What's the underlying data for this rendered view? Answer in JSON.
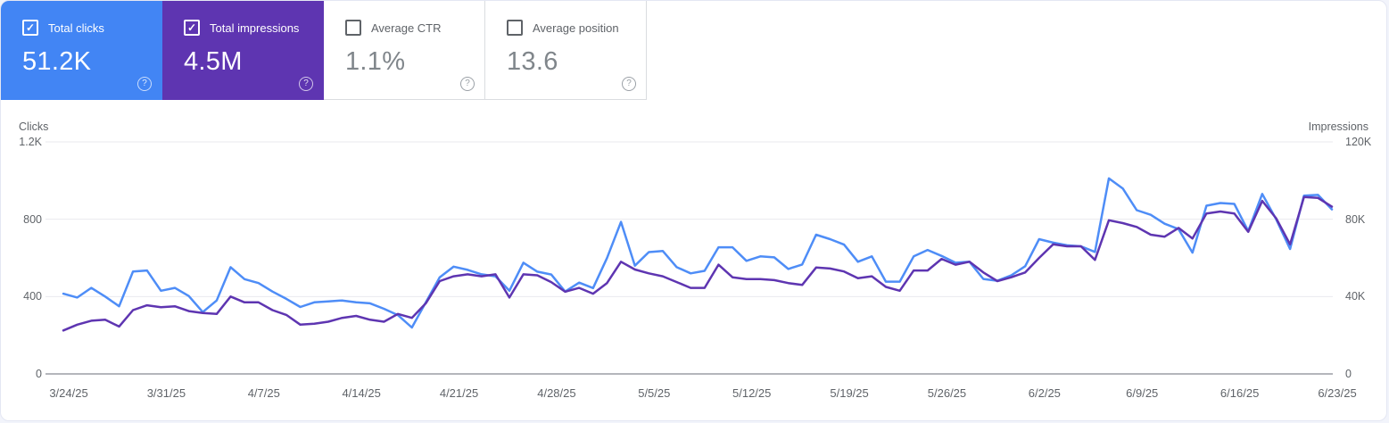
{
  "cards": [
    {
      "label": "Total clicks",
      "value": "51.2K",
      "checked": true,
      "bg": "#4285f4",
      "help_glyph": "?"
    },
    {
      "label": "Total impressions",
      "value": "4.5M",
      "checked": true,
      "bg": "#5e35b1",
      "help_glyph": "?"
    },
    {
      "label": "Average CTR",
      "value": "1.1%",
      "checked": false,
      "bg": "#ffffff",
      "help_glyph": "?"
    },
    {
      "label": "Average position",
      "value": "13.6",
      "checked": false,
      "bg": "#ffffff",
      "help_glyph": "?"
    }
  ],
  "checkmark_glyph": "✓",
  "chart_data": {
    "type": "line",
    "granularity": "daily",
    "x_start": "3/24/25",
    "x_end": "6/23/25",
    "x_tick_labels": [
      "3/24/25",
      "3/31/25",
      "4/7/25",
      "4/14/25",
      "4/21/25",
      "4/28/25",
      "5/5/25",
      "5/12/25",
      "5/19/25",
      "5/26/25",
      "6/2/25",
      "6/9/25",
      "6/16/25",
      "6/23/25"
    ],
    "left_axis": {
      "title": "Clicks",
      "ticks": [
        "1.2K",
        "800",
        "400",
        "0"
      ],
      "tick_values": [
        1200,
        800,
        400,
        0
      ],
      "max": 1200
    },
    "right_axis": {
      "title": "Impressions",
      "ticks": [
        "120K",
        "80K",
        "40K",
        "0"
      ],
      "tick_values": [
        120000,
        80000,
        40000,
        0
      ],
      "max": 120000
    },
    "grid": true,
    "legend_position": "none",
    "series": [
      {
        "name": "Total clicks",
        "axis": "left",
        "color": "#4e8df7",
        "values": [
          415,
          395,
          445,
          400,
          350,
          530,
          535,
          430,
          445,
          403,
          320,
          380,
          552,
          490,
          470,
          426,
          388,
          346,
          370,
          375,
          380,
          370,
          365,
          337,
          304,
          240,
          370,
          500,
          555,
          538,
          515,
          505,
          430,
          575,
          529,
          514,
          426,
          472,
          444,
          599,
          786,
          560,
          630,
          636,
          552,
          520,
          533,
          655,
          655,
          585,
          608,
          603,
          543,
          566,
          720,
          697,
          669,
          580,
          608,
          477,
          477,
          608,
          641,
          610,
          575,
          580,
          491,
          482,
          510,
          557,
          697,
          679,
          665,
          660,
          631,
          1011,
          959,
          847,
          823,
          777,
          749,
          627,
          870,
          884,
          879,
          739,
          931,
          800,
          646,
          922,
          926,
          851
        ]
      },
      {
        "name": "Total impressions",
        "axis": "right",
        "color": "#5e35b1",
        "values": [
          22500,
          25500,
          27500,
          28000,
          24500,
          33000,
          35500,
          34500,
          35000,
          32500,
          31500,
          31000,
          40000,
          37000,
          37000,
          33000,
          30500,
          25500,
          26000,
          27000,
          29000,
          30000,
          28000,
          27000,
          31000,
          29000,
          36500,
          48000,
          50500,
          51500,
          50500,
          51500,
          39500,
          51500,
          51000,
          47500,
          42500,
          44500,
          41500,
          47000,
          58000,
          54000,
          52000,
          50500,
          47500,
          44500,
          44500,
          56500,
          50000,
          49000,
          49000,
          48500,
          47000,
          46000,
          55000,
          54500,
          53000,
          49500,
          50500,
          45000,
          43000,
          53500,
          53500,
          59500,
          56500,
          58000,
          52500,
          48000,
          50000,
          52500,
          60000,
          67000,
          66000,
          66000,
          59000,
          79500,
          78000,
          76000,
          72000,
          71000,
          75500,
          70000,
          83000,
          84000,
          83000,
          73500,
          89500,
          80500,
          67000,
          91500,
          91000,
          86500
        ]
      }
    ],
    "colors": {
      "grid_line": "#e9eaee",
      "axis_line": "#b4b6bb",
      "label_text": "#5f6368"
    }
  }
}
